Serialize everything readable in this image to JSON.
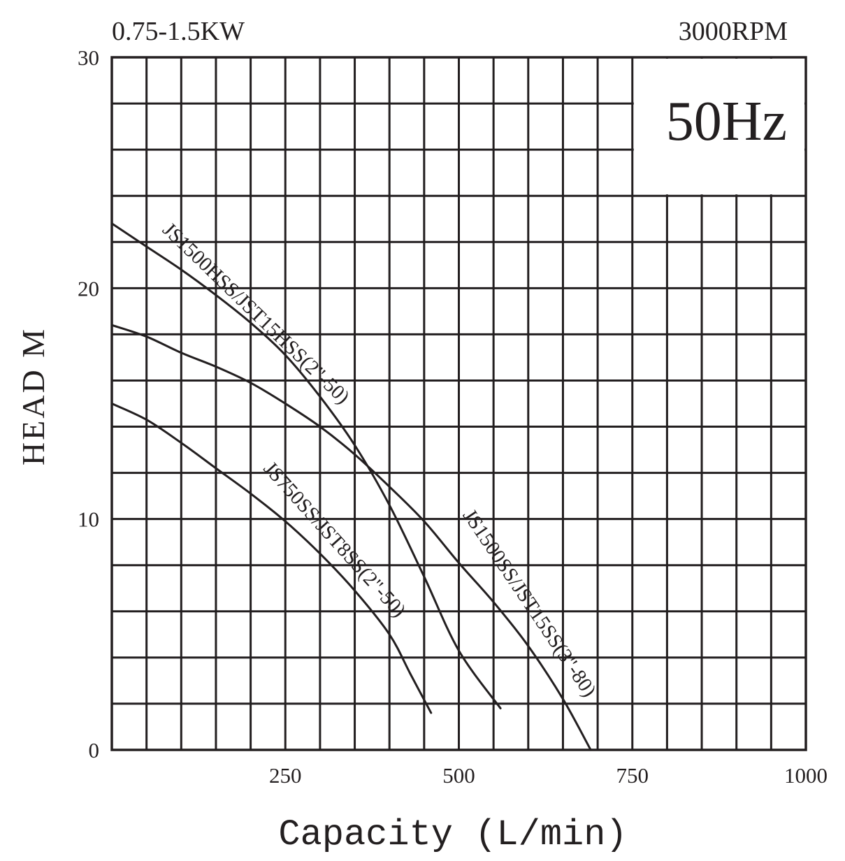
{
  "header": {
    "power_label": "0.75-1.5KW",
    "speed_label": "3000RPM",
    "frequency_label": "50Hz"
  },
  "chart_data": {
    "type": "line",
    "title": "",
    "xlabel": "Capacity (L/min)",
    "ylabel": "HEAD M",
    "xlim": [
      0,
      1000
    ],
    "ylim": [
      0,
      30
    ],
    "x_ticks": [
      250,
      500,
      750,
      1000
    ],
    "y_ticks": [
      0,
      10,
      20,
      30
    ],
    "grid": true,
    "x_grid_step": 50,
    "y_grid_step": 2,
    "colors": {
      "line": "#231f20",
      "grid": "#231f20",
      "background": "#ffffff"
    },
    "series": [
      {
        "name": "JS1500HSS/JST15HSS(2\"-50)",
        "points": [
          [
            0,
            22.8
          ],
          [
            50,
            21.8
          ],
          [
            100,
            20.8
          ],
          [
            150,
            19.7
          ],
          [
            200,
            18.5
          ],
          [
            250,
            17.1
          ],
          [
            300,
            15.3
          ],
          [
            350,
            13.2
          ],
          [
            400,
            10.6
          ],
          [
            450,
            7.5
          ],
          [
            500,
            4.3
          ],
          [
            560,
            1.8
          ]
        ]
      },
      {
        "name": "JS750SS/JST8SS(2\"-50)",
        "points": [
          [
            0,
            15.0
          ],
          [
            50,
            14.3
          ],
          [
            100,
            13.3
          ],
          [
            150,
            12.2
          ],
          [
            200,
            11.1
          ],
          [
            250,
            9.9
          ],
          [
            300,
            8.5
          ],
          [
            350,
            6.9
          ],
          [
            400,
            5.0
          ],
          [
            430,
            3.3
          ],
          [
            460,
            1.6
          ]
        ]
      },
      {
        "name": "JS1500SS/JST15SS(3\"-80)",
        "points": [
          [
            0,
            18.4
          ],
          [
            50,
            17.9
          ],
          [
            100,
            17.2
          ],
          [
            150,
            16.6
          ],
          [
            200,
            15.9
          ],
          [
            250,
            15.0
          ],
          [
            300,
            14.0
          ],
          [
            350,
            12.8
          ],
          [
            400,
            11.4
          ],
          [
            450,
            9.9
          ],
          [
            500,
            8.1
          ],
          [
            550,
            6.4
          ],
          [
            600,
            4.5
          ],
          [
            650,
            2.2
          ],
          [
            690,
            0
          ]
        ]
      }
    ]
  }
}
